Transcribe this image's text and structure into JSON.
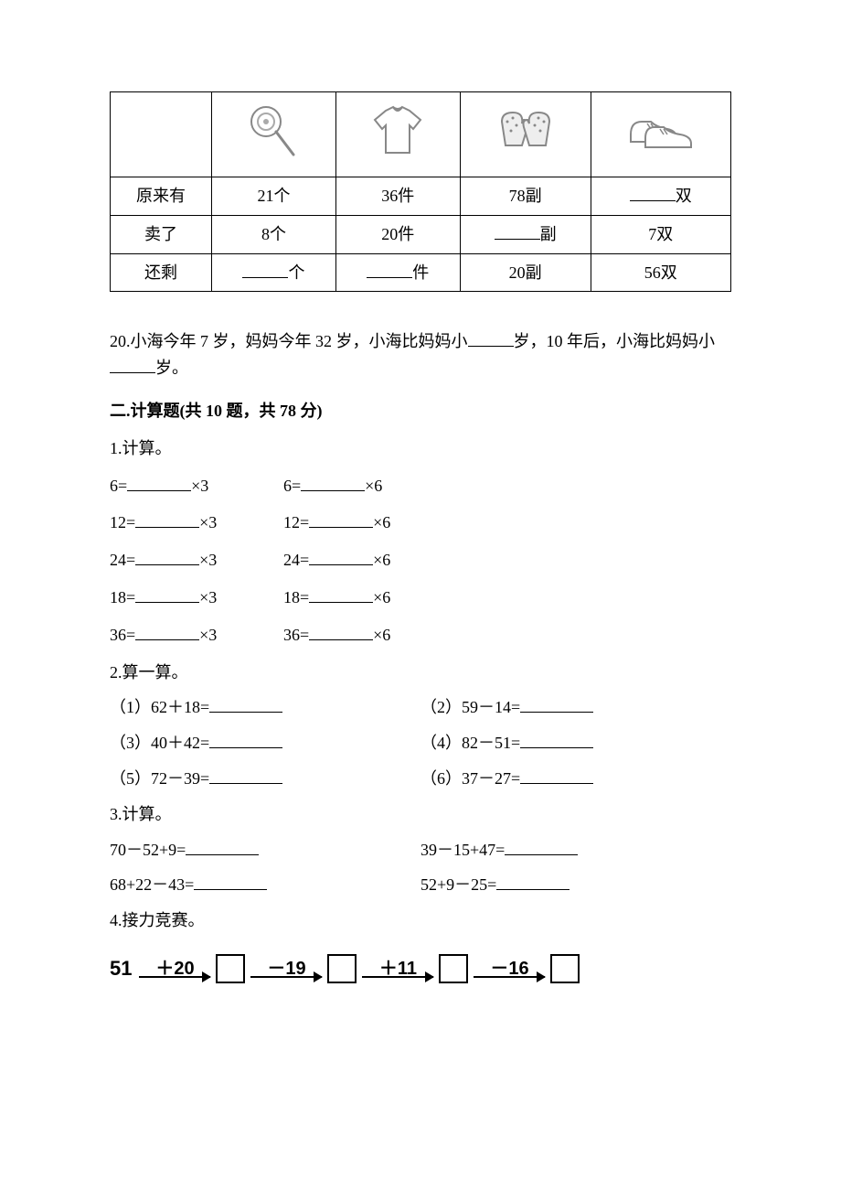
{
  "table": {
    "row_labels": [
      "原来有",
      "卖了",
      "还剩"
    ],
    "cols": [
      {
        "icon": "lollipop",
        "original": {
          "text": "21个",
          "blank": false
        },
        "sold": {
          "text": "8个",
          "blank": false
        },
        "left": {
          "suffix": "个",
          "blank": true
        }
      },
      {
        "icon": "shirt",
        "original": {
          "text": "36件",
          "blank": false
        },
        "sold": {
          "text": "20件",
          "blank": false
        },
        "left": {
          "suffix": "件",
          "blank": true
        }
      },
      {
        "icon": "gloves",
        "original": {
          "text": "78副",
          "blank": false
        },
        "sold": {
          "suffix": "副",
          "blank": true
        },
        "left": {
          "text": "20副",
          "blank": false
        }
      },
      {
        "icon": "shoes",
        "original": {
          "suffix": "双",
          "blank": true
        },
        "sold": {
          "text": "7双",
          "blank": false
        },
        "left": {
          "text": "56双",
          "blank": false
        }
      }
    ]
  },
  "q20": {
    "prefix": "20.小海今年 7 岁，妈妈今年 32 岁，小海比妈妈小",
    "mid": "岁，10 年后，小海比妈妈小",
    "suffix": "岁。"
  },
  "section2_title": "二.计算题(共 10 题，共 78 分)",
  "p1": {
    "title": "1.计算。",
    "rows": [
      {
        "a": "6=",
        "a_tail": "×3",
        "b": "6=",
        "b_tail": "×6"
      },
      {
        "a": "12=",
        "a_tail": "×3",
        "b": "12=",
        "b_tail": "×6"
      },
      {
        "a": "24=",
        "a_tail": "×3",
        "b": "24=",
        "b_tail": "×6"
      },
      {
        "a": "18=",
        "a_tail": "×3",
        "b": "18=",
        "b_tail": "×6"
      },
      {
        "a": "36=",
        "a_tail": "×3",
        "b": "36=",
        "b_tail": "×6"
      }
    ]
  },
  "p2": {
    "title": "2.算一算。",
    "rows": [
      {
        "a": "（1）62＋18=",
        "b": "（2）59－14="
      },
      {
        "a": "（3）40＋42=",
        "b": "（4）82－51="
      },
      {
        "a": "（5）72－39=",
        "b": "（6）37－27="
      }
    ]
  },
  "p3": {
    "title": "3.计算。",
    "rows": [
      {
        "a": "70－52+9=",
        "b": "39－15+47="
      },
      {
        "a": "68+22－43=",
        "b": "52+9－25="
      }
    ]
  },
  "p4": {
    "title": "4.接力竞赛。",
    "start": "51",
    "ops": [
      "＋20",
      "－19",
      "＋11",
      "－16"
    ]
  }
}
